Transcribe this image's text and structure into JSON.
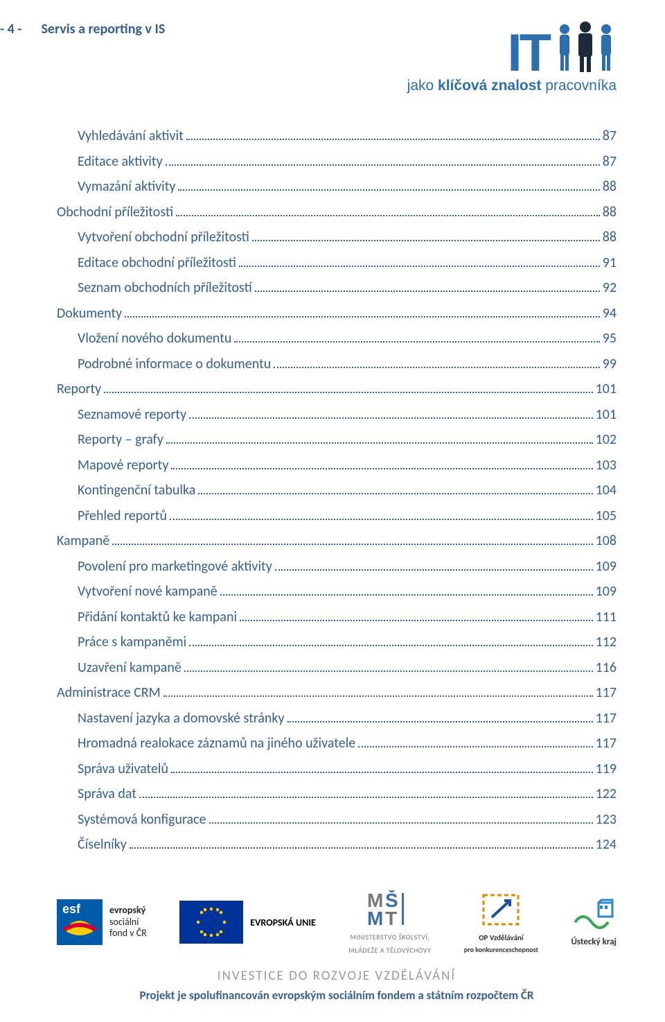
{
  "header": {
    "page_marker": "- 4 -",
    "title": "Servis a reporting v IS",
    "logo": {
      "letters": "IT",
      "tagline_prefix": "jako ",
      "tagline_bold": "klíčová znalost",
      "tagline_suffix": " pracovníka"
    }
  },
  "toc": [
    {
      "level": 2,
      "label": "Vyhledávání aktivit",
      "page": "87"
    },
    {
      "level": 2,
      "label": "Editace aktivity",
      "page": "87"
    },
    {
      "level": 2,
      "label": "Vymazání aktivity",
      "page": "88"
    },
    {
      "level": 1,
      "label": "Obchodní příležitosti",
      "page": "88"
    },
    {
      "level": 2,
      "label": "Vytvoření obchodní příležitosti",
      "page": "88"
    },
    {
      "level": 2,
      "label": "Editace obchodní příležitosti",
      "page": "91"
    },
    {
      "level": 2,
      "label": "Seznam obchodních příležitostí",
      "page": "92"
    },
    {
      "level": 1,
      "label": "Dokumenty",
      "page": "94"
    },
    {
      "level": 2,
      "label": "Vložení nového dokumentu",
      "page": "95"
    },
    {
      "level": 2,
      "label": "Podrobné informace o dokumentu",
      "page": "99"
    },
    {
      "level": 1,
      "label": "Reporty",
      "page": "101"
    },
    {
      "level": 2,
      "label": "Seznamové reporty",
      "page": "101"
    },
    {
      "level": 2,
      "label": "Reporty – grafy",
      "page": "102"
    },
    {
      "level": 2,
      "label": "Mapové reporty",
      "page": "103"
    },
    {
      "level": 2,
      "label": "Kontingenční tabulka",
      "page": "104"
    },
    {
      "level": 2,
      "label": "Přehled reportů",
      "page": "105"
    },
    {
      "level": 1,
      "label": "Kampaně",
      "page": "108"
    },
    {
      "level": 2,
      "label": "Povolení pro marketingové aktivity",
      "page": "109"
    },
    {
      "level": 2,
      "label": "Vytvoření nové kampaně",
      "page": "109"
    },
    {
      "level": 2,
      "label": "Přidání kontaktů ke kampani",
      "page": "111"
    },
    {
      "level": 2,
      "label": "Práce s kampaněmi",
      "page": "112"
    },
    {
      "level": 2,
      "label": "Uzavření kampaně",
      "page": "116"
    },
    {
      "level": 1,
      "label": "Administrace CRM",
      "page": "117"
    },
    {
      "level": 2,
      "label": "Nastavení jazyka a domovské stránky",
      "page": "117"
    },
    {
      "level": 2,
      "label": "Hromadná realokace záznamů na jiného uživatele",
      "page": "117"
    },
    {
      "level": 2,
      "label": "Správa uživatelů",
      "page": "119"
    },
    {
      "level": 2,
      "label": "Správa dat",
      "page": "122"
    },
    {
      "level": 2,
      "label": "Systémová konfigurace",
      "page": "123"
    },
    {
      "level": 2,
      "label": "Číselníky",
      "page": "124"
    }
  ],
  "footer": {
    "esf": {
      "line1": "evropský",
      "line2": "sociální",
      "line3": "fond v ČR"
    },
    "eu_caption": "EVROPSKÁ UNIE",
    "msmt": {
      "line1": "MINISTERSTVO ŠKOLSTVÍ,",
      "line2": "MLÁDEŽE A TĚLOVÝCHOVY"
    },
    "op": {
      "line1": "OP Vzdělávání",
      "line2": "pro konkurenceschopnost"
    },
    "uk": "Ústecký kraj",
    "invest": "INVESTICE DO ROZVOJE VZDĚLÁVÁNÍ",
    "sponsor": "Projekt je spolufinancován evropským sociálním fondem a státním rozpočtem ČR"
  },
  "colors": {
    "heading": "#365f91",
    "logo_blue": "#2b6fae"
  }
}
